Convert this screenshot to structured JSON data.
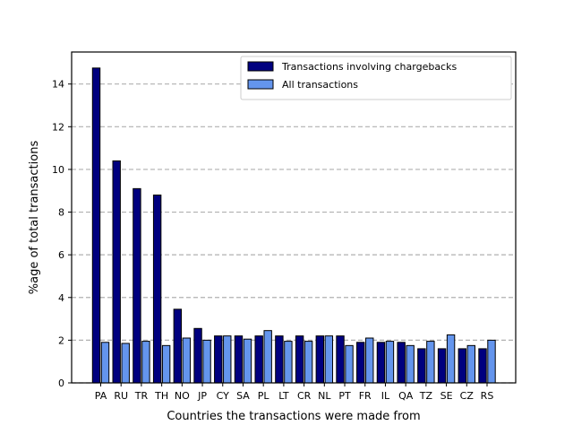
{
  "chart_data": {
    "type": "bar",
    "title": "",
    "xlabel": "Countries the transactions were made from",
    "ylabel": "%age of total transactions",
    "categories": [
      "PA",
      "RU",
      "TR",
      "TH",
      "NO",
      "JP",
      "CY",
      "SA",
      "PL",
      "LT",
      "CR",
      "NL",
      "PT",
      "FR",
      "IL",
      "QA",
      "TZ",
      "SE",
      "CZ",
      "RS"
    ],
    "series": [
      {
        "name": "Transactions involving chargebacks",
        "color": "#00007f",
        "values": [
          14.75,
          10.4,
          9.1,
          8.8,
          3.45,
          2.55,
          2.2,
          2.2,
          2.2,
          2.2,
          2.2,
          2.2,
          2.2,
          1.9,
          1.9,
          1.9,
          1.6,
          1.6,
          1.6,
          1.6
        ]
      },
      {
        "name": "All transactions",
        "color": "#6495ed",
        "values": [
          1.9,
          1.85,
          1.95,
          1.75,
          2.1,
          2.0,
          2.2,
          2.05,
          2.45,
          1.95,
          1.95,
          2.2,
          1.75,
          2.1,
          1.95,
          1.75,
          1.95,
          2.25,
          1.75,
          2.0
        ]
      }
    ],
    "ylim": [
      0,
      15.5
    ],
    "yticks": [
      0,
      2,
      4,
      6,
      8,
      10,
      12,
      14
    ],
    "grid": "y-dashed",
    "legend_position": "top-right"
  }
}
